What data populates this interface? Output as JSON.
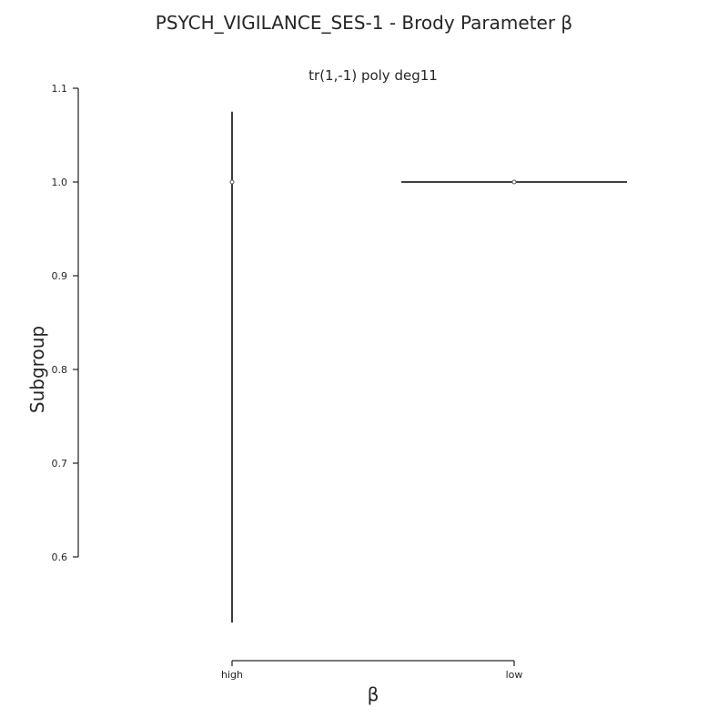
{
  "figure": {
    "title": "PSYCH_VIGILANCE_SES-1 - Brody Parameter β"
  },
  "chart_data": {
    "type": "pointplot",
    "title": "tr(1,-1) poly deg11",
    "xlabel": "β",
    "ylabel": "Subgroup",
    "categories": [
      "high",
      "low"
    ],
    "y_ticks": [
      "0.6",
      "0.7",
      "0.8",
      "0.9",
      "1.0",
      "1.1"
    ],
    "y_tick_values": [
      0.6,
      0.7,
      0.8,
      0.9,
      1.0,
      1.1
    ],
    "ylim": [
      0.6,
      1.1
    ],
    "points": [
      {
        "category": "high",
        "y": 1.0,
        "interval_orientation": "vertical",
        "interval": [
          0.53,
          1.075
        ]
      },
      {
        "category": "low",
        "y": 1.0,
        "interval_orientation": "horizontal",
        "interval_x_categories": [
          0.6,
          1.4
        ]
      }
    ],
    "grid": false
  }
}
